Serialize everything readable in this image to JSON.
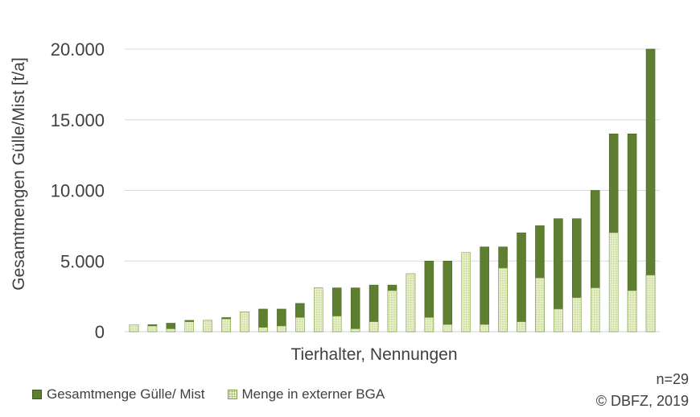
{
  "chart_data": {
    "type": "bar",
    "stacked": "overlay",
    "xlabel": "Tierhalter, Nennungen",
    "ylabel": "Gesamtmengen Gülle/Mist [t/a]",
    "ylim": [
      0,
      20000
    ],
    "yticks": [
      "0",
      "5.000",
      "10.000",
      "15.000",
      "20.000"
    ],
    "ytick_values": [
      0,
      5000,
      10000,
      15000,
      20000
    ],
    "grid": true,
    "legend_position": "bottom-left",
    "series": [
      {
        "name": "Gesamtmenge Gülle/ Mist",
        "color": "#5e7f2f",
        "values": [
          500,
          500,
          600,
          800,
          800,
          1000,
          1400,
          1600,
          1600,
          2000,
          3100,
          3100,
          3100,
          3300,
          3300,
          4100,
          5000,
          5000,
          5600,
          6000,
          6000,
          7000,
          7500,
          8000,
          8000,
          10000,
          14000,
          14000,
          20000
        ]
      },
      {
        "name": "Menge in externer BGA",
        "color": "#c6d98a",
        "values": [
          500,
          400,
          200,
          700,
          800,
          900,
          1400,
          300,
          400,
          1000,
          3100,
          1100,
          200,
          700,
          2900,
          4100,
          1000,
          500,
          5600,
          500,
          4500,
          700,
          3800,
          1600,
          2400,
          3100,
          7000,
          2900,
          4000
        ]
      }
    ]
  },
  "notes": {
    "n": "n=29",
    "copyright": "© DBFZ, 2019"
  }
}
